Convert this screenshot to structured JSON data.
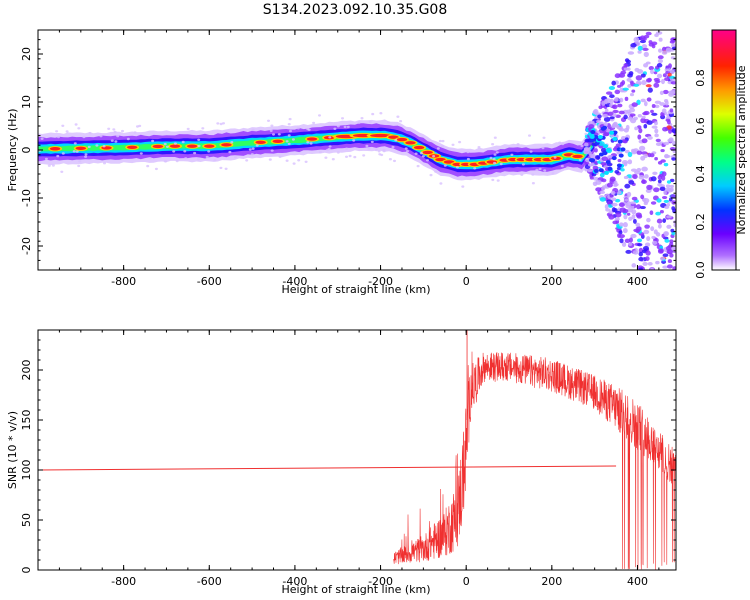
{
  "title": "S134.2023.092.10.35.G08",
  "colors": {
    "snr_line": "#f03030",
    "ridge": "#ff2020",
    "colormap": [
      "#8a00ff",
      "#3a00ff",
      "#0066ff",
      "#00e0ff",
      "#00ff66",
      "#66ff00",
      "#ffff00",
      "#ff8800",
      "#ff0000",
      "#ff0080"
    ]
  },
  "chart_data": [
    {
      "type": "heatmap",
      "xlabel": "Height of straight line (km)",
      "ylabel": "Frequency (Hz)",
      "xlim": [
        -1000,
        490
      ],
      "ylim": [
        -25,
        25
      ],
      "xticks": [
        -800,
        -600,
        -400,
        -200,
        0,
        200,
        400
      ],
      "yticks": [
        -20,
        -10,
        0,
        10,
        20
      ],
      "colorbar": {
        "label": "Normalized spectral amplitude",
        "range": [
          0,
          1
        ],
        "ticks": [
          0.0,
          0.2,
          0.4,
          0.6,
          0.8
        ]
      },
      "ridge": [
        {
          "x": -1000,
          "f": 0.2
        },
        {
          "x": -800,
          "f": 0.5
        },
        {
          "x": -700,
          "f": 0.8
        },
        {
          "x": -600,
          "f": 0.8
        },
        {
          "x": -500,
          "f": 1.5
        },
        {
          "x": -400,
          "f": 2.0
        },
        {
          "x": -330,
          "f": 2.5
        },
        {
          "x": -250,
          "f": 3.0
        },
        {
          "x": -190,
          "f": 3.0
        },
        {
          "x": -160,
          "f": 2.5
        },
        {
          "x": -130,
          "f": 1.5
        },
        {
          "x": -100,
          "f": 0.0
        },
        {
          "x": -60,
          "f": -2.0
        },
        {
          "x": -20,
          "f": -3.0
        },
        {
          "x": 20,
          "f": -3.0
        },
        {
          "x": 60,
          "f": -2.5
        },
        {
          "x": 100,
          "f": -2.0
        },
        {
          "x": 150,
          "f": -2.0
        },
        {
          "x": 200,
          "f": -2.0
        },
        {
          "x": 240,
          "f": -1.0
        },
        {
          "x": 270,
          "f": -1.5
        },
        {
          "x": 300,
          "f": 2.0
        },
        {
          "x": 330,
          "f": -2.0
        },
        {
          "x": 370,
          "f": -3.0
        },
        {
          "x": 400,
          "f": -5.0
        }
      ]
    },
    {
      "type": "line",
      "xlabel": "Height of straight line (km)",
      "ylabel": "SNR (10 * v/v)",
      "xlim": [
        -1000,
        490
      ],
      "ylim": [
        0,
        240
      ],
      "xticks": [
        -800,
        -600,
        -400,
        -200,
        0,
        200,
        400
      ],
      "yticks": [
        0,
        50,
        100,
        150,
        200
      ],
      "reference_line": {
        "x": [
          -1000,
          350
        ],
        "y": [
          100,
          104
        ]
      },
      "envelope": [
        {
          "x": -170,
          "lo": 5,
          "hi": 18
        },
        {
          "x": -100,
          "lo": 8,
          "hi": 35
        },
        {
          "x": -50,
          "lo": 12,
          "hi": 60
        },
        {
          "x": -20,
          "lo": 20,
          "hi": 90
        },
        {
          "x": -10,
          "lo": 40,
          "hi": 130
        },
        {
          "x": 0,
          "lo": 80,
          "hi": 170
        },
        {
          "x": 10,
          "lo": 150,
          "hi": 205
        },
        {
          "x": 40,
          "lo": 188,
          "hi": 218
        },
        {
          "x": 100,
          "lo": 188,
          "hi": 218
        },
        {
          "x": 200,
          "lo": 178,
          "hi": 212
        },
        {
          "x": 300,
          "lo": 160,
          "hi": 195
        },
        {
          "x": 350,
          "lo": 140,
          "hi": 185
        },
        {
          "x": 400,
          "lo": 120,
          "hi": 170
        },
        {
          "x": 450,
          "lo": 100,
          "hi": 140
        },
        {
          "x": 490,
          "lo": 80,
          "hi": 120
        }
      ],
      "dropout_start": 355
    }
  ]
}
